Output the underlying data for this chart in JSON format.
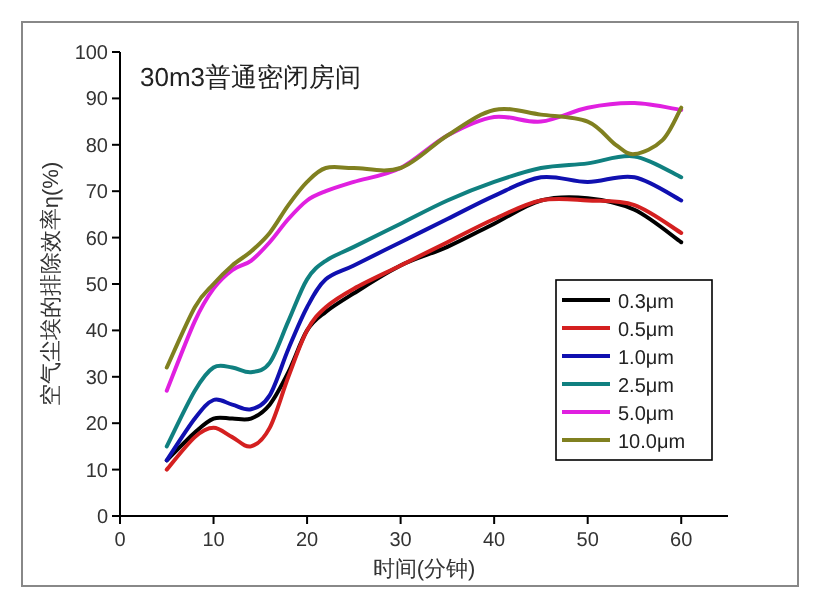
{
  "chart_data": {
    "type": "line",
    "title": "30m3普通密闭房间",
    "xlabel": "时间(分钟)",
    "ylabel": "空气尘埃的排除效率η(%)",
    "x": [
      5,
      8,
      10,
      12,
      14,
      16,
      18,
      20,
      22,
      25,
      30,
      35,
      40,
      45,
      50,
      55,
      60
    ],
    "series": [
      {
        "name": "0.3μm",
        "color": "#000000",
        "values": [
          12,
          18,
          21,
          21,
          21,
          24,
          31,
          40,
          44,
          48,
          54,
          58,
          63,
          68,
          68.5,
          66,
          59
        ]
      },
      {
        "name": "0.5μm",
        "color": "#d42020",
        "values": [
          10,
          17,
          19,
          17,
          15,
          19,
          30,
          40,
          45,
          49,
          54,
          59,
          64,
          68,
          68,
          67,
          61
        ]
      },
      {
        "name": "1.0μm",
        "color": "#1010b0",
        "values": [
          12,
          21,
          25,
          24,
          23,
          26,
          36,
          45,
          51,
          54,
          59,
          64,
          69,
          73,
          72,
          73,
          68
        ]
      },
      {
        "name": "2.5μm",
        "color": "#108080",
        "values": [
          15,
          27,
          32,
          32,
          31,
          33,
          42,
          51,
          55,
          58,
          63,
          68,
          72,
          75,
          76,
          77.5,
          73
        ]
      },
      {
        "name": "5.0μm",
        "color": "#e020e0",
        "values": [
          27,
          42,
          49,
          53,
          55,
          59,
          64,
          68,
          70,
          72,
          75,
          82,
          86,
          85,
          88,
          89,
          87.5
        ]
      },
      {
        "name": "10.0μm",
        "color": "#808020",
        "x": [
          5,
          8,
          10,
          12,
          14,
          16,
          18,
          20,
          22,
          25,
          30,
          35,
          40,
          45,
          50,
          53,
          55,
          58,
          60
        ],
        "values": [
          32,
          45,
          50,
          54,
          57,
          61,
          67,
          72,
          75,
          75,
          75,
          82,
          87.5,
          86.5,
          85,
          80,
          78,
          81,
          88
        ]
      }
    ],
    "xlim": [
      0,
      65
    ],
    "xticks": [
      0,
      10,
      20,
      30,
      40,
      50,
      60
    ],
    "ylim": [
      0,
      100
    ],
    "yticks": [
      0,
      10,
      20,
      30,
      40,
      50,
      60,
      70,
      80,
      90,
      100
    ],
    "legend": "bottom right",
    "grid": false
  }
}
